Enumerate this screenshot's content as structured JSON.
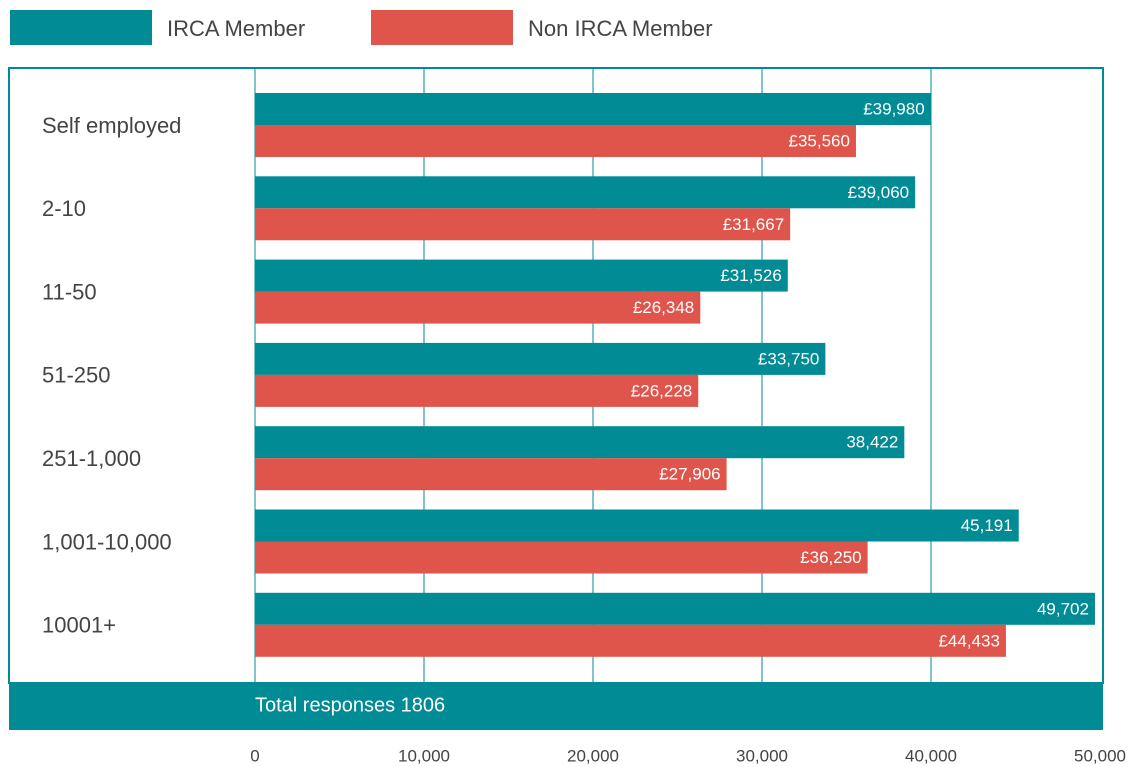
{
  "chart_data": {
    "type": "bar",
    "orientation": "horizontal",
    "categories": [
      "Self employed",
      "2-10",
      "11-50",
      "51-250",
      "251-1,000",
      "1,001-10,000",
      "10001+"
    ],
    "series": [
      {
        "name": "IRCA Member",
        "color": "#008b95",
        "values": [
          39980,
          39060,
          31526,
          33750,
          38422,
          45191,
          49702
        ],
        "value_labels": [
          "£39,980",
          "£39,060",
          "£31,526",
          "£33,750",
          "38,422",
          "45,191",
          "49,702"
        ]
      },
      {
        "name": "Non IRCA Member",
        "color": "#df554b",
        "values": [
          35560,
          31667,
          26348,
          26228,
          27906,
          36250,
          44433
        ],
        "value_labels": [
          "£35,560",
          "£31,667",
          "£26,348",
          "£26,228",
          "£27,906",
          "£36,250",
          "£44,433"
        ]
      }
    ],
    "xlim": [
      0,
      50000
    ],
    "xticks": [
      0,
      {
        "value": 10000,
        "label": "10,000"
      },
      {
        "value": 20000,
        "label": "20,000"
      },
      {
        "value": 30000,
        "label": "30,000"
      },
      {
        "value": 40000,
        "label": "40,000"
      },
      {
        "value": 50000,
        "label": "50,000"
      }
    ],
    "grid": true,
    "footer": "Total responses 1806"
  }
}
